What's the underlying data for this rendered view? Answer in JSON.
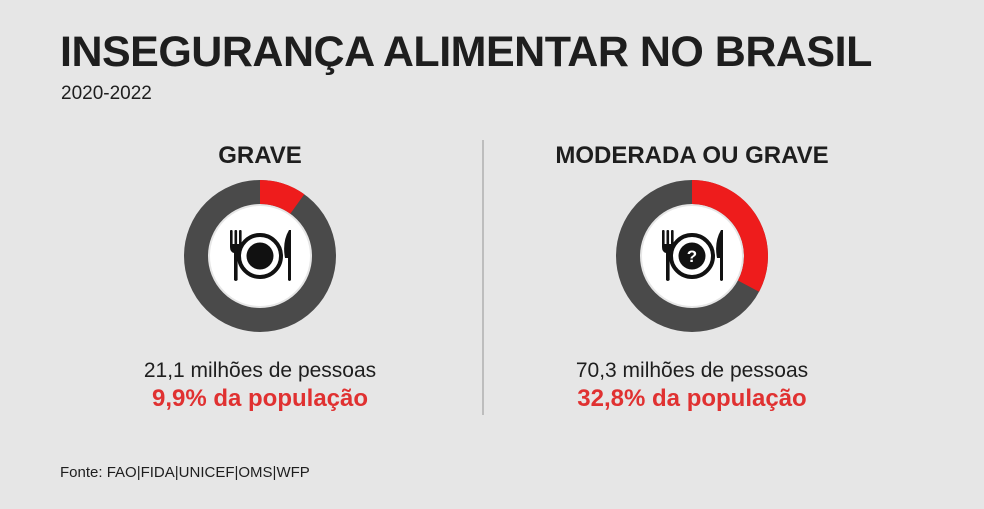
{
  "header": {
    "title": "INSEGURANÇA ALIMENTAR NO BRASIL",
    "subtitle": "2020-2022"
  },
  "colors": {
    "ring": "#4a4a4a",
    "highlight": "#ee1c1c",
    "center": "#ffffff",
    "icon": "#111111"
  },
  "chart_data": [
    {
      "type": "pie",
      "title": "GRAVE",
      "value_percent": 9.9,
      "people_label": "21,1 milhões de pessoas",
      "share_label": "9,9% da população",
      "icon": "plate-fork-knife-icon"
    },
    {
      "type": "pie",
      "title": "MODERADA OU GRAVE",
      "value_percent": 32.8,
      "people_label": "70,3 milhões de pessoas",
      "share_label": "32,8% da população",
      "icon": "plate-question-fork-knife-icon"
    }
  ],
  "footer": {
    "source": "Fonte: FAO|FIDA|UNICEF|OMS|WFP"
  }
}
